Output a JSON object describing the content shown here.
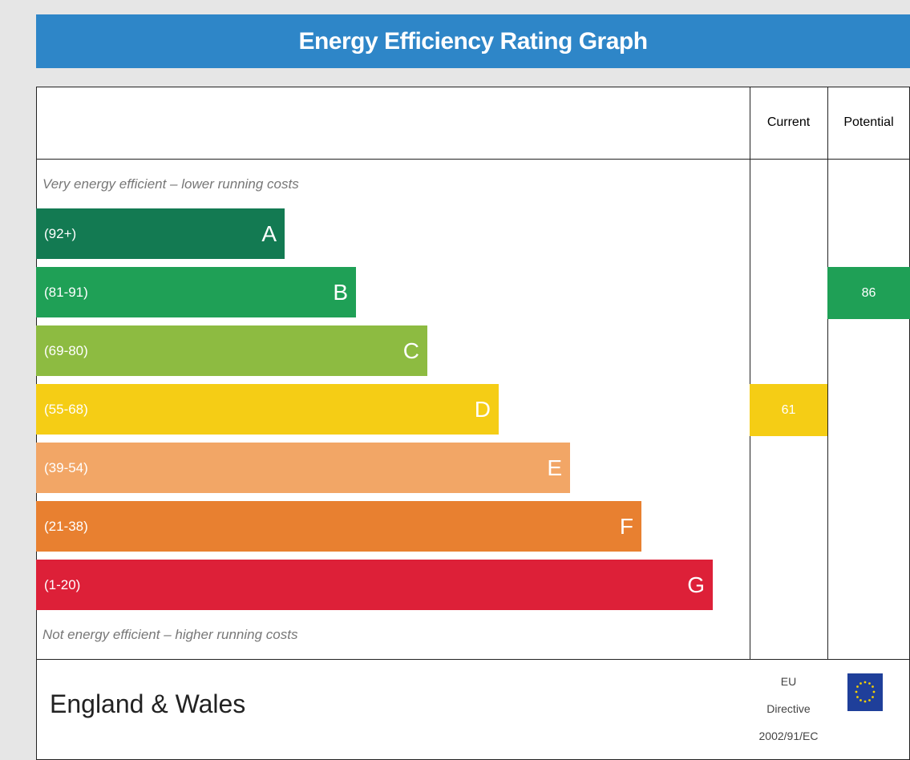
{
  "title": "Energy Efficiency Rating Graph",
  "columns": {
    "current": "Current",
    "potential": "Potential"
  },
  "top_note": "Very energy efficient – lower running costs",
  "bottom_note": "Not energy efficient – higher running costs",
  "bands": [
    {
      "range": "(92+)",
      "letter": "A",
      "color": "#137a52"
    },
    {
      "range": "(81-91)",
      "letter": "B",
      "color": "#1fa056"
    },
    {
      "range": "(69-80)",
      "letter": "C",
      "color": "#8dbb41"
    },
    {
      "range": "(55-68)",
      "letter": "D",
      "color": "#f5cd15"
    },
    {
      "range": "(39-54)",
      "letter": "E",
      "color": "#f2a666"
    },
    {
      "range": "(21-38)",
      "letter": "F",
      "color": "#e88030"
    },
    {
      "range": "(1-20)",
      "letter": "G",
      "color": "#dd2038"
    }
  ],
  "current": 61,
  "potential": 86,
  "footer": {
    "region": "England & Wales",
    "directive": [
      "EU",
      "Directive",
      "2002/91/EC"
    ]
  }
}
